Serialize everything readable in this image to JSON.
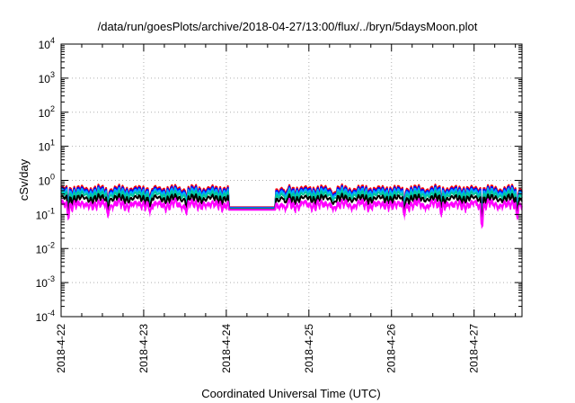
{
  "chart_data": {
    "type": "line",
    "title": "/data/run/goesPlots/archive/2018-04-27/13:00/flux/../bryn/5daysMoon.plot",
    "xlabel": "Coordinated Universal Time (UTC)",
    "ylabel": "cSv/day",
    "y_scale": "log",
    "grid": true,
    "ylim_exp": [
      -4,
      4
    ],
    "y_ticks": [
      {
        "base": "10",
        "exp": "-4"
      },
      {
        "base": "10",
        "exp": "-3"
      },
      {
        "base": "10",
        "exp": "-2"
      },
      {
        "base": "10",
        "exp": "-1"
      },
      {
        "base": "10",
        "exp": "0"
      },
      {
        "base": "10",
        "exp": "1"
      },
      {
        "base": "10",
        "exp": "2"
      },
      {
        "base": "10",
        "exp": "3"
      },
      {
        "base": "10",
        "exp": "4"
      }
    ],
    "x_ticks": [
      {
        "label": "2018-4-22",
        "day": 0
      },
      {
        "label": "2018-4-23",
        "day": 1
      },
      {
        "label": "2018-4-24",
        "day": 2
      },
      {
        "label": "2018-4-25",
        "day": 3
      },
      {
        "label": "2018-4-26",
        "day": 4
      },
      {
        "label": "2018-4-27",
        "day": 5
      }
    ],
    "xlim_days": [
      0,
      5.58
    ],
    "series_shape": {
      "base_value": 0.36,
      "gap": {
        "start": 2.02,
        "end": 2.6,
        "value": 0.16
      },
      "dips": [
        {
          "at": 0.09,
          "ratio": 0.55
        },
        {
          "at": 0.56,
          "ratio": 0.6
        },
        {
          "at": 1.08,
          "ratio": 0.65
        },
        {
          "at": 1.52,
          "ratio": 0.7
        },
        {
          "at": 2.72,
          "ratio": 0.62
        },
        {
          "at": 3.3,
          "ratio": 0.75
        },
        {
          "at": 4.15,
          "ratio": 0.5
        },
        {
          "at": 4.6,
          "ratio": 0.7
        },
        {
          "at": 5.1,
          "ratio": 0.35
        },
        {
          "at": 5.52,
          "ratio": 0.45
        }
      ]
    },
    "series": [
      {
        "color": "#ff0000",
        "factor": 1.55,
        "fill": false
      },
      {
        "color": "#0000ff",
        "factor": 1.4,
        "fill": false
      },
      {
        "color": "#00aaff",
        "factor": 1.25,
        "fill": false
      },
      {
        "color": "#00c8a0",
        "factor": 1.05,
        "fill": false
      },
      {
        "color": "#000000",
        "factor": 0.82,
        "fill": false
      },
      {
        "color": "#ff00ff",
        "factor": 0.62,
        "fill": true
      }
    ]
  }
}
